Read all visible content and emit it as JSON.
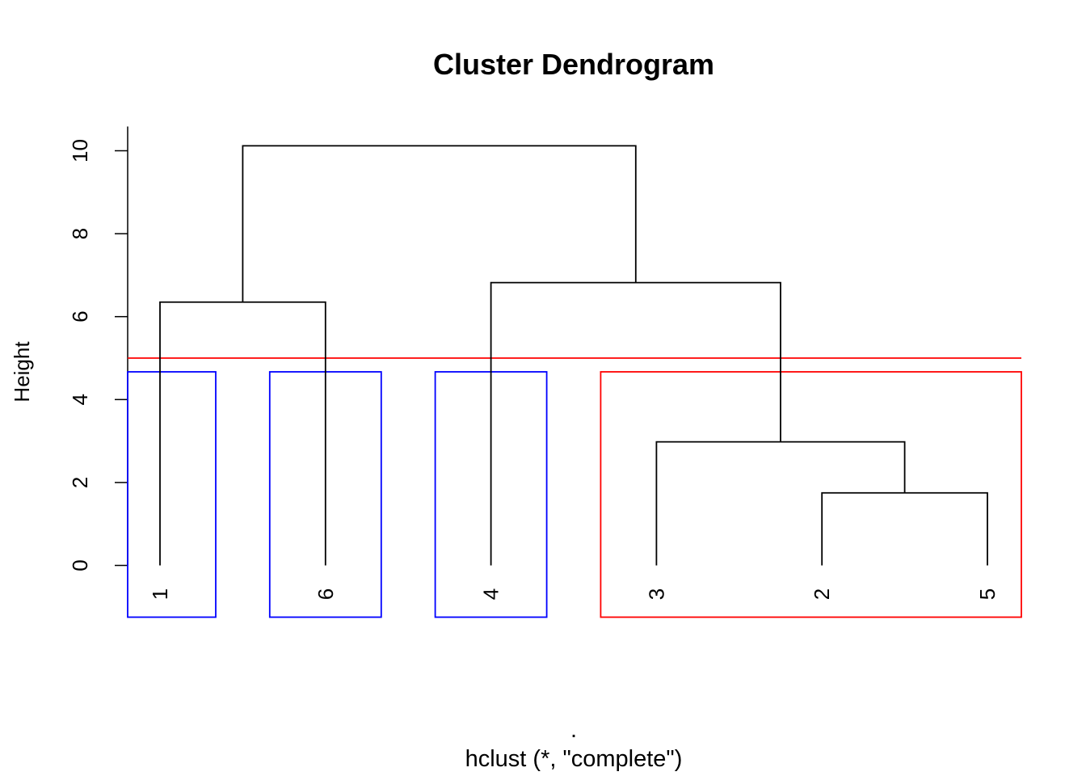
{
  "chart_data": {
    "type": "dendrogram",
    "title": "Cluster Dendrogram",
    "ylabel": "Height",
    "xlabel": ".",
    "sub": "hclust (*, \"complete\")",
    "ylim": [
      0,
      10
    ],
    "yticks": [
      0,
      2,
      4,
      6,
      8,
      10
    ],
    "leaf_order": [
      "1",
      "6",
      "4",
      "3",
      "2",
      "5"
    ],
    "merges": [
      {
        "left": "2",
        "right": "5",
        "height": 1.75
      },
      {
        "left": "3",
        "right": "2+5",
        "height": 2.98
      },
      {
        "left": "1",
        "right": "6",
        "height": 6.35
      },
      {
        "left": "4",
        "right": "3+2+5",
        "height": 6.82
      },
      {
        "left": "1+6",
        "right": "4+3+2+5",
        "height": 10.12
      }
    ],
    "cut_height": 5,
    "cut_line_color": "#ff0000",
    "clusters": [
      {
        "members": [
          "1"
        ],
        "color": "#0000ff"
      },
      {
        "members": [
          "6"
        ],
        "color": "#0000ff"
      },
      {
        "members": [
          "4"
        ],
        "color": "#0000ff"
      },
      {
        "members": [
          "3",
          "2",
          "5"
        ],
        "color": "#ff0000"
      }
    ],
    "branch_color": "#000000"
  }
}
